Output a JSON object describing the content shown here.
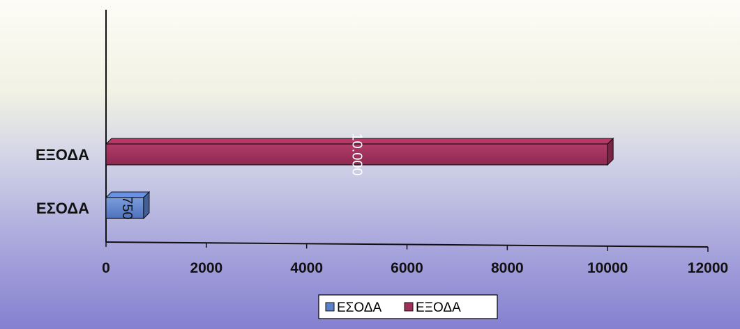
{
  "chart_data": {
    "type": "bar",
    "orientation": "horizontal",
    "bar_3d": true,
    "categories": [
      "ΕΣΟΔΑ",
      "ΕΞΟΔΑ"
    ],
    "series": [
      {
        "name": "ΕΣΟΔΑ",
        "values": [
          750,
          null
        ],
        "data_labels": [
          "750",
          ""
        ],
        "color": "#5b7fc8"
      },
      {
        "name": "ΕΞΟΔΑ",
        "values": [
          null,
          10000
        ],
        "data_labels": [
          "",
          "10.000"
        ],
        "color": "#a0305a"
      }
    ],
    "x_ticks": [
      "0",
      "2000",
      "4000",
      "6000",
      "8000",
      "10000",
      "12000"
    ],
    "xlim": [
      0,
      12000
    ],
    "grid": false,
    "legend": {
      "position": "bottom",
      "entries": [
        "ΕΣΟΔΑ",
        "ΕΞΟΔΑ"
      ]
    }
  }
}
